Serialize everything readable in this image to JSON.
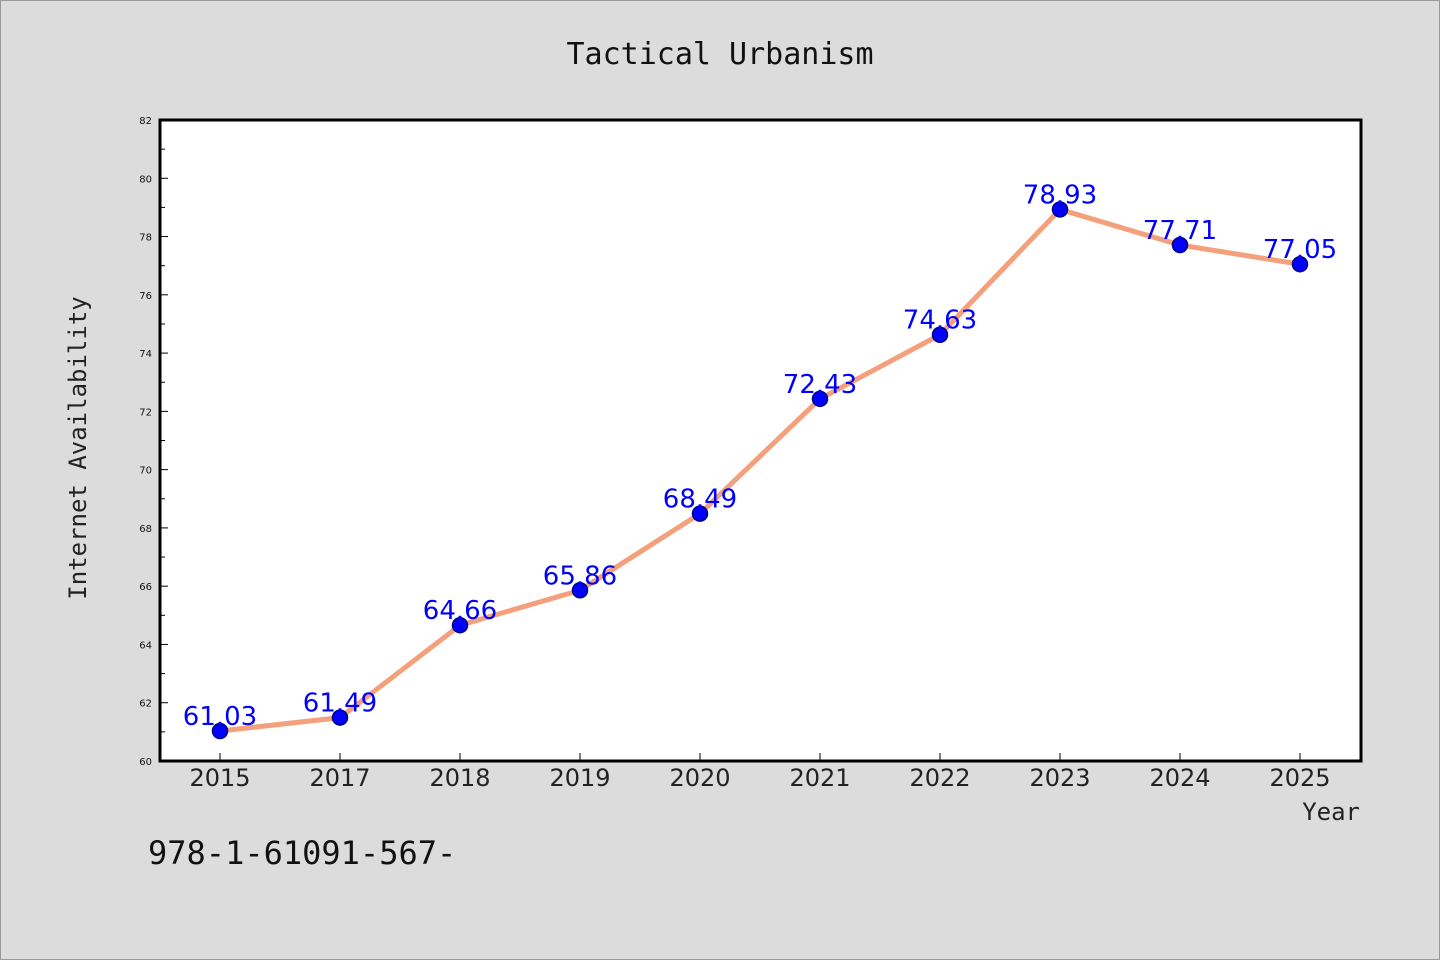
{
  "chart_data": {
    "type": "line",
    "title": "Tactical Urbanism",
    "xlabel": "Year",
    "ylabel": "Internet Availability",
    "categories": [
      "2015",
      "2017",
      "2018",
      "2019",
      "2020",
      "2021",
      "2022",
      "2023",
      "2024",
      "2025"
    ],
    "series": [
      {
        "values": [
          61.03,
          61.49,
          64.66,
          65.86,
          68.49,
          72.43,
          74.63,
          78.93,
          77.71,
          77.05
        ]
      }
    ],
    "ylim": [
      60,
      82
    ],
    "yticks": [
      60,
      62,
      64,
      66,
      68,
      70,
      72,
      74,
      76,
      78,
      80,
      82
    ],
    "grid": false,
    "legend": "none",
    "colors": {
      "line": "#f4a07c",
      "marker": "#0000ff",
      "marker_edge": "#000080",
      "labels": "#0000ff",
      "background": "#dcdcdc",
      "plot_area": "#ffffff"
    }
  },
  "footer_text": "978-1-61091-567-"
}
